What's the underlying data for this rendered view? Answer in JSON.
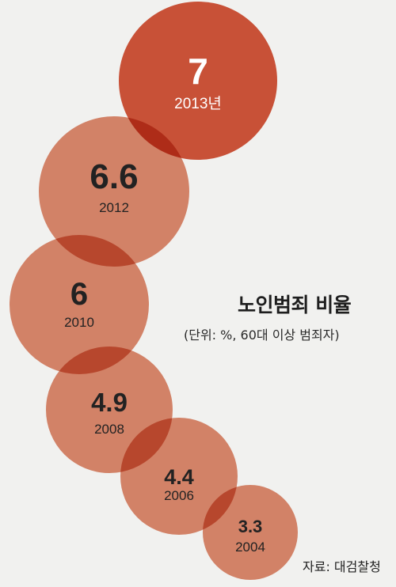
{
  "chart_data": {
    "type": "bubble",
    "title": "노인범죄 비율",
    "subtitle": "(단위: %, 60대 이상 범죄자)",
    "source": "자료: 대검찰청",
    "unit_suffix_top": "년",
    "points": [
      {
        "year": "2013",
        "value": "7"
      },
      {
        "year": "2012",
        "value": "6.6"
      },
      {
        "year": "2010",
        "value": "6"
      },
      {
        "year": "2008",
        "value": "4.9"
      },
      {
        "year": "2006",
        "value": "4.4"
      },
      {
        "year": "2004",
        "value": "3.3"
      }
    ],
    "colors": {
      "top": "#d4553a",
      "others": "#df8a6e",
      "background": "#f1f1ef"
    }
  }
}
